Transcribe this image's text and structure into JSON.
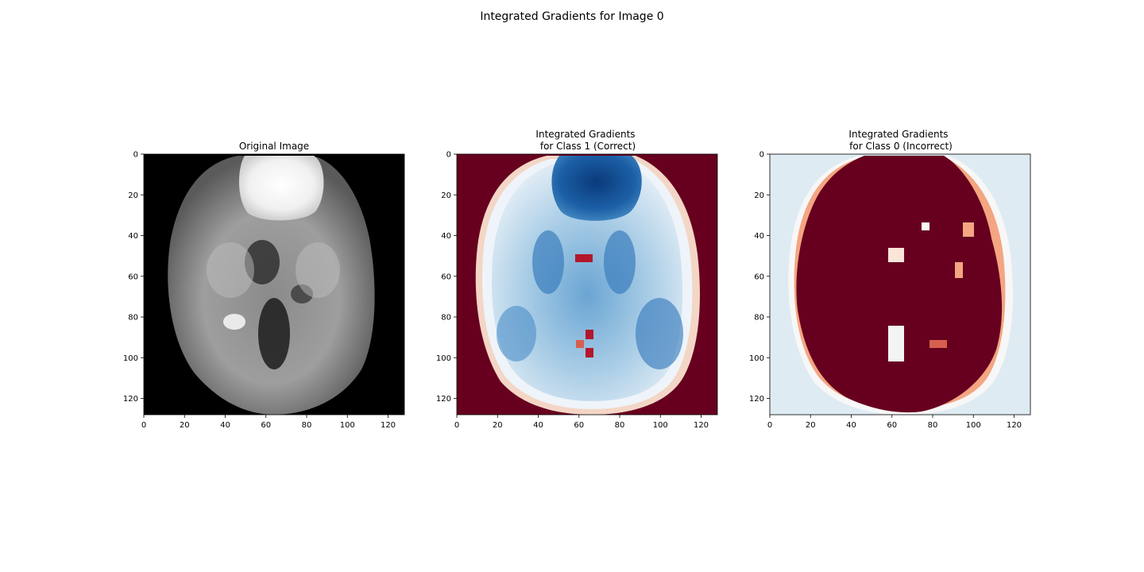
{
  "figure": {
    "title": "Integrated Gradients for Image 0"
  },
  "chart_data": [
    {
      "type": "heatmap",
      "title": "Original Image",
      "colormap": "gray",
      "xlim": [
        0,
        128
      ],
      "ylim": [
        128,
        0
      ],
      "xticks": [
        "0",
        "20",
        "40",
        "60",
        "80",
        "100",
        "120"
      ],
      "yticks": [
        "0",
        "20",
        "40",
        "60",
        "80",
        "100",
        "120"
      ],
      "grid": false
    },
    {
      "type": "heatmap",
      "title": "Integrated Gradients\nfor Class 1 (Correct)",
      "title_lines": [
        "Integrated Gradients",
        "for Class 1 (Correct)"
      ],
      "colormap": "RdBu",
      "background_color": "#67001f",
      "xlim": [
        0,
        128
      ],
      "ylim": [
        128,
        0
      ],
      "xticks": [
        "0",
        "20",
        "40",
        "60",
        "80",
        "100",
        "120"
      ],
      "yticks": [
        "0",
        "20",
        "40",
        "60",
        "80",
        "100",
        "120"
      ],
      "grid": false
    },
    {
      "type": "heatmap",
      "title": "Integrated Gradients\nfor Class 0 (Incorrect)",
      "title_lines": [
        "Integrated Gradients",
        "for Class 0 (Incorrect)"
      ],
      "colormap": "RdBu",
      "background_color": "#dfebf2",
      "xlim": [
        0,
        128
      ],
      "ylim": [
        128,
        0
      ],
      "xticks": [
        "0",
        "20",
        "40",
        "60",
        "80",
        "100",
        "120"
      ],
      "yticks": [
        "0",
        "20",
        "40",
        "60",
        "80",
        "100",
        "120"
      ],
      "grid": false
    }
  ]
}
